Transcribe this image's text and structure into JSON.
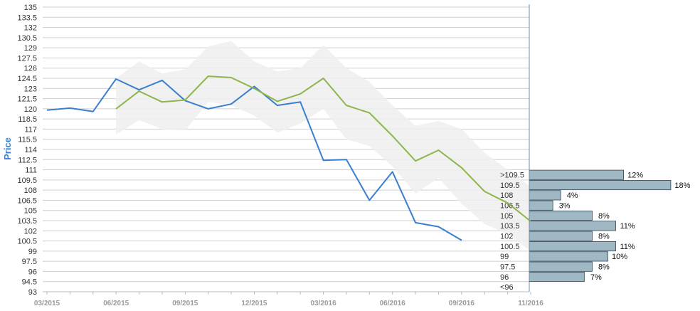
{
  "chart_data": {
    "type": "line",
    "title": "",
    "ylabel": "Price",
    "xlabel": "",
    "ylim": [
      93,
      135
    ],
    "ystep": 1.5,
    "yticks": [
      "135",
      "133.5",
      "132",
      "130.5",
      "129",
      "127.5",
      "126",
      "124.5",
      "123",
      "121.5",
      "120",
      "118.5",
      "117",
      "115.5",
      "114",
      "112.5",
      "111",
      "109.5",
      "108",
      "106.5",
      "105",
      "103.5",
      "102",
      "100.5",
      "99",
      "97.5",
      "96",
      "94.5",
      "93"
    ],
    "x_months": 21,
    "xticks": [
      {
        "label": "03/2015",
        "month": 0
      },
      {
        "label": "06/2015",
        "month": 3
      },
      {
        "label": "09/2015",
        "month": 6
      },
      {
        "label": "12/2015",
        "month": 9
      },
      {
        "label": "03/2016",
        "month": 12
      },
      {
        "label": "06/2016",
        "month": 15
      },
      {
        "label": "09/2016",
        "month": 18
      },
      {
        "label": "11/2016",
        "month": 21
      }
    ],
    "series": [
      {
        "color": "#3a7fcf",
        "months": [
          0,
          1,
          2,
          3,
          4,
          5,
          6,
          7,
          8,
          9,
          10,
          11,
          12,
          13,
          14,
          15,
          16,
          17,
          18
        ],
        "values": [
          119.8,
          120.1,
          119.6,
          124.4,
          122.8,
          124.2,
          121.2,
          120.0,
          120.7,
          123.3,
          120.5,
          121.0,
          112.4,
          112.5,
          106.5,
          110.7,
          103.2,
          102.6,
          100.6
        ]
      },
      {
        "color": "#8db54b",
        "months": [
          3,
          4,
          5,
          6,
          7,
          8,
          9,
          10,
          11,
          12,
          13,
          14,
          15,
          16,
          17,
          18,
          19,
          20,
          21
        ],
        "values": [
          120.0,
          122.6,
          121.0,
          121.3,
          124.8,
          124.6,
          123.0,
          121.1,
          122.2,
          124.5,
          120.5,
          119.4,
          116.0,
          112.3,
          113.9,
          111.3,
          107.8,
          106.1,
          103.4
        ]
      }
    ],
    "band": {
      "color": "#eeeeee",
      "months": [
        3,
        4,
        5,
        6,
        7,
        8,
        9,
        10,
        11,
        12,
        13,
        14,
        15,
        16,
        17,
        18,
        19,
        20,
        21
      ],
      "upper": [
        124.5,
        127.0,
        125.2,
        125.8,
        129.2,
        130.0,
        127.0,
        125.5,
        126.0,
        129.4,
        126.0,
        124.0,
        120.5,
        117.5,
        118.2,
        117.0,
        113.5,
        111.0,
        108.5
      ],
      "lower": [
        116.2,
        118.3,
        117.0,
        116.8,
        121.0,
        120.5,
        119.0,
        116.5,
        117.8,
        120.0,
        115.5,
        114.5,
        111.5,
        107.5,
        109.8,
        106.0,
        103.0,
        101.5,
        99.0
      ]
    },
    "distribution": {
      "color": "#a0b8c4",
      "bars": [
        {
          "label": ">109.5",
          "pct": "12%",
          "value": 12
        },
        {
          "label": "109.5",
          "pct": "18%",
          "value": 18
        },
        {
          "label": "108",
          "pct": "4%",
          "value": 4
        },
        {
          "label": "106.5",
          "pct": "3%",
          "value": 3
        },
        {
          "label": "105",
          "pct": "8%",
          "value": 8
        },
        {
          "label": "103.5",
          "pct": "11%",
          "value": 11
        },
        {
          "label": "102",
          "pct": "8%",
          "value": 8
        },
        {
          "label": "100.5",
          "pct": "11%",
          "value": 11
        },
        {
          "label": "99",
          "pct": "10%",
          "value": 10
        },
        {
          "label": "97.5",
          "pct": "8%",
          "value": 8
        },
        {
          "label": "96",
          "pct": "7%",
          "value": 7
        },
        {
          "label": "<96",
          "pct": "",
          "value": 0
        }
      ]
    },
    "grid": true,
    "legend": "none"
  }
}
